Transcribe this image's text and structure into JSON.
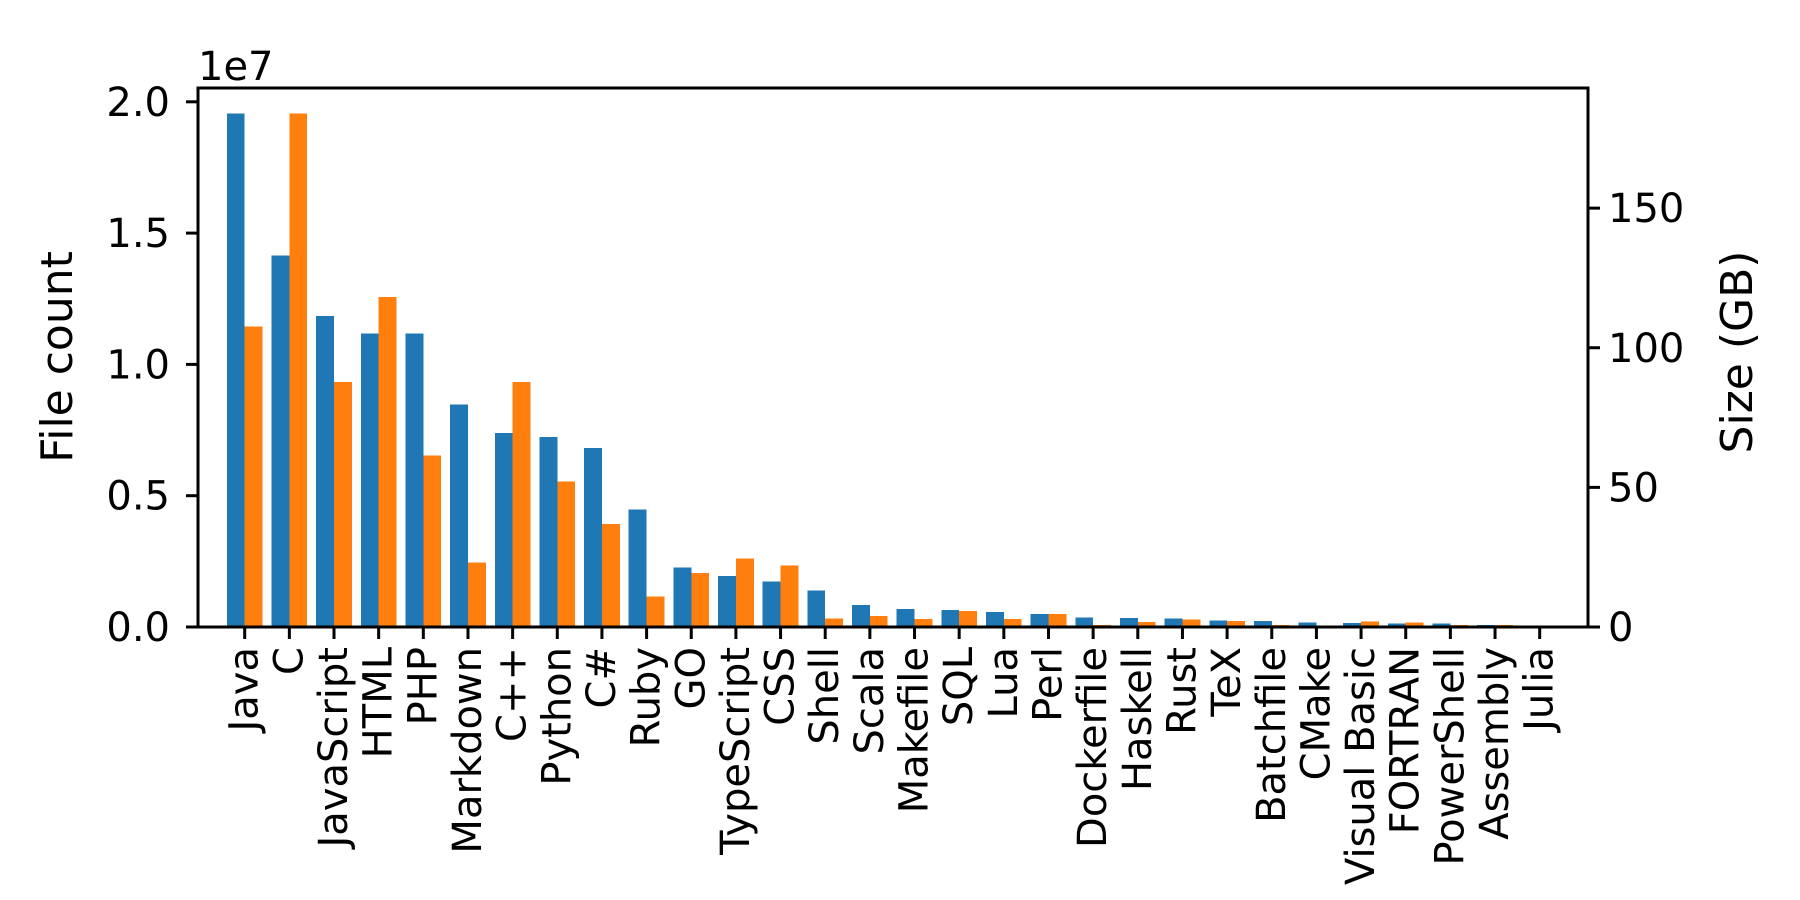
{
  "chart_data": {
    "type": "bar",
    "title": "",
    "legend_position": "none",
    "grid": false,
    "background_color": "#ffffff",
    "categories": [
      "Java",
      "C",
      "JavaScript",
      "HTML",
      "PHP",
      "Markdown",
      "C++",
      "Python",
      "C#",
      "Ruby",
      "GO",
      "TypeScript",
      "CSS",
      "Shell",
      "Scala",
      "Makefile",
      "SQL",
      "Lua",
      "Perl",
      "Dockerfile",
      "Haskell",
      "Rust",
      "TeX",
      "Batchfile",
      "CMake",
      "Visual Basic",
      "FORTRAN",
      "PowerShell",
      "Assembly",
      "Julia"
    ],
    "series": [
      {
        "name": "File count",
        "axis": "left",
        "color": "#1f77b4",
        "values": [
          19548190,
          14143113,
          11839883,
          11178557,
          11177610,
          8464626,
          7380520,
          7226626,
          6811652,
          4473331,
          2265436,
          1940406,
          1734406,
          1385648,
          835755,
          679430,
          656671,
          578554,
          497949,
          366505,
          340623,
          322431,
          251015,
          236945,
          175282,
          155652,
          142038,
          136846,
          82905,
          58317
        ]
      },
      {
        "name": "Size (GB)",
        "axis": "right",
        "color": "#ff7f0e",
        "values": [
          107.7,
          183.83,
          87.82,
          118.12,
          61.41,
          23.09,
          87.73,
          52.03,
          36.83,
          10.95,
          19.28,
          24.59,
          22.09,
          3.01,
          3.87,
          2.92,
          5.67,
          2.81,
          4.7,
          0.71,
          1.85,
          2.68,
          2.15,
          0.7,
          0.54,
          1.91,
          1.62,
          0.69,
          0.78,
          0.29
        ]
      }
    ],
    "left_axis": {
      "label": "File count",
      "color": "#1f77b4",
      "offset_text": "1e7",
      "tick_values": [
        0,
        5000000,
        10000000,
        15000000,
        20000000
      ],
      "tick_labels": [
        "0.0",
        "0.5",
        "1.0",
        "1.5",
        "2.0"
      ],
      "ylim": [
        0,
        20525600
      ]
    },
    "right_axis": {
      "label": "Size (GB)",
      "color": "#ff7f0e",
      "tick_values": [
        0,
        50,
        100,
        150
      ],
      "tick_labels": [
        "0",
        "50",
        "100",
        "150"
      ],
      "ylim": [
        0,
        193.02
      ]
    },
    "x_axis": {
      "tick_label_rotation_degrees": 90
    },
    "axis_line_color": "#000000",
    "tick_label_color": "#000000"
  }
}
